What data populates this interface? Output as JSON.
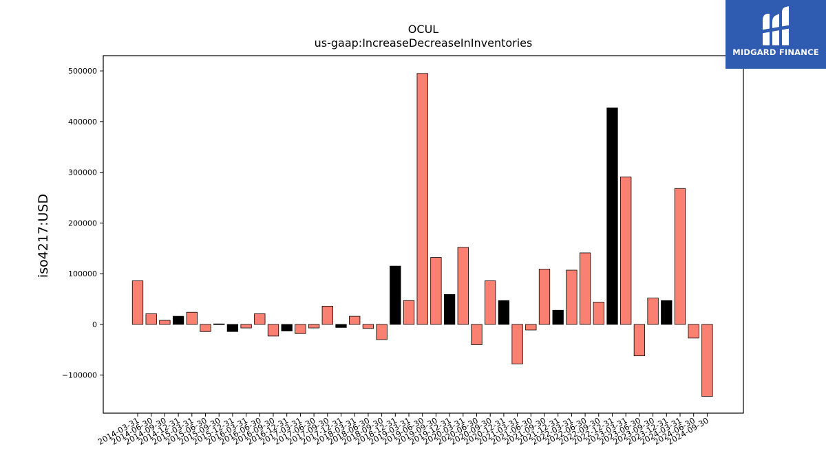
{
  "logo": {
    "text": "MIDGARD FINANCE",
    "icon": "midgard-logo-icon",
    "background": "#2f5bb0"
  },
  "colors": {
    "positive_bar": "#fa8072",
    "highlight_bar": "#000000",
    "bar_edge": "#000000"
  },
  "chart_data": {
    "type": "bar",
    "title": "OCUL",
    "subtitle": "us-gaap:IncreaseDecreaseInInventories",
    "xlabel": "",
    "ylabel": "iso4217:USD",
    "ylim": [
      -175000,
      530000
    ],
    "yticks": [
      -100000,
      0,
      100000,
      200000,
      300000,
      400000,
      500000
    ],
    "ytick_labels": [
      "−100000",
      "0",
      "100000",
      "200000",
      "300000",
      "400000",
      "500000"
    ],
    "grid": false,
    "categories": [
      "2014-03-31",
      "2014-06-30",
      "2014-09-30",
      "2014-12-31",
      "2015-03-31",
      "2015-06-30",
      "2015-09-30",
      "2015-12-31",
      "2016-03-31",
      "2016-06-30",
      "2016-09-30",
      "2016-12-31",
      "2017-03-31",
      "2017-06-30",
      "2017-09-30",
      "2017-12-31",
      "2018-03-31",
      "2018-06-30",
      "2018-09-30",
      "2018-12-31",
      "2019-03-31",
      "2019-06-30",
      "2019-09-30",
      "2019-12-31",
      "2020-03-31",
      "2020-06-30",
      "2020-09-30",
      "2020-12-31",
      "2021-03-31",
      "2021-06-30",
      "2021-09-30",
      "2021-12-31",
      "2022-03-31",
      "2022-06-30",
      "2022-09-30",
      "2022-12-31",
      "2023-03-31",
      "2023-06-30",
      "2023-09-30",
      "2023-12-31",
      "2024-03-31",
      "2024-06-30",
      "2024-09-30"
    ],
    "values": [
      86000,
      21000,
      8000,
      16000,
      24000,
      -14000,
      1000,
      -14000,
      -7000,
      21000,
      -23000,
      -13000,
      -18000,
      -7000,
      36000,
      -6000,
      16000,
      -8000,
      -30000,
      115000,
      47000,
      495000,
      132000,
      59000,
      152000,
      -40000,
      86000,
      47000,
      -78000,
      -11000,
      109000,
      28000,
      107000,
      141000,
      44000,
      427000,
      291000,
      -62000,
      52000,
      47000,
      268000,
      -27000,
      -142000
    ],
    "highlight": [
      false,
      false,
      false,
      true,
      false,
      false,
      true,
      true,
      false,
      false,
      false,
      true,
      false,
      false,
      false,
      true,
      false,
      false,
      false,
      true,
      false,
      false,
      false,
      true,
      false,
      false,
      false,
      true,
      false,
      false,
      false,
      true,
      false,
      false,
      false,
      true,
      false,
      false,
      false,
      true,
      false,
      false,
      false
    ]
  }
}
